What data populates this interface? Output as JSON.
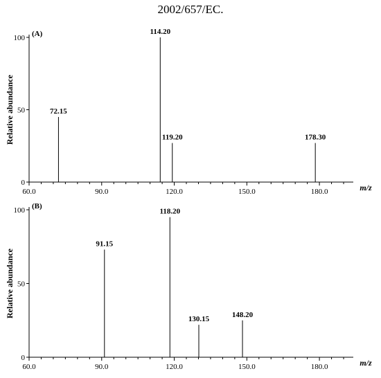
{
  "header_text": "2002/657/EC.",
  "chart_data": [
    {
      "type": "bar",
      "panel_label": "(A)",
      "ylabel": "Relative abundance",
      "xlabel": "m/z",
      "xlim": [
        60.0,
        194.0
      ],
      "ylim": [
        0,
        100
      ],
      "x_ticks": [
        "60.0",
        "90.0",
        "120.0",
        "150.0",
        "180.0"
      ],
      "y_ticks": [
        "0",
        "50",
        "100"
      ],
      "grid": false,
      "peaks": [
        {
          "x": 72.15,
          "y": 45,
          "label": "72.15"
        },
        {
          "x": 114.2,
          "y": 100,
          "label": "114.20"
        },
        {
          "x": 119.2,
          "y": 27,
          "label": "119.20"
        },
        {
          "x": 178.3,
          "y": 27,
          "label": "178.30"
        }
      ]
    },
    {
      "type": "bar",
      "panel_label": "(B)",
      "ylabel": "Relative abundance",
      "xlabel": "m/z",
      "xlim": [
        60.0,
        194.0
      ],
      "ylim": [
        0,
        100
      ],
      "x_ticks": [
        "60.0",
        "90.0",
        "120.0",
        "150.0",
        "180.0"
      ],
      "y_ticks": [
        "0",
        "50",
        "100"
      ],
      "grid": false,
      "peaks": [
        {
          "x": 91.15,
          "y": 73,
          "label": "91.15"
        },
        {
          "x": 118.2,
          "y": 95,
          "label": "118.20"
        },
        {
          "x": 130.15,
          "y": 22,
          "label": "130.15"
        },
        {
          "x": 148.2,
          "y": 25,
          "label": "148.20"
        }
      ]
    }
  ]
}
